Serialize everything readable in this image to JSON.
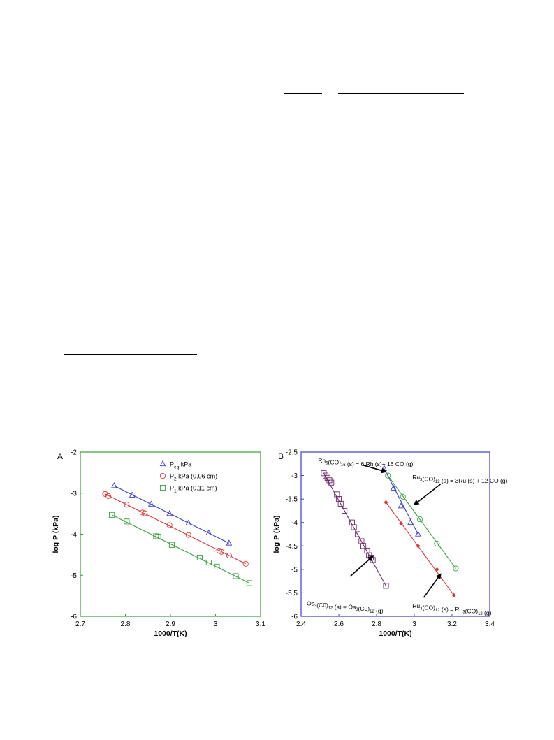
{
  "page": {
    "background": "#ffffff"
  },
  "chart_data": [
    {
      "type": "scatter",
      "panel_label": "A",
      "xlabel": "1000/T(K)",
      "ylabel": "log  P  (kPa)",
      "xlim": [
        2.7,
        3.1
      ],
      "ylim": [
        -6,
        -2
      ],
      "xticks": [
        "2.7",
        "2.8",
        "2.9",
        "3",
        "3.1"
      ],
      "yticks": [
        "-6",
        "-5",
        "-4",
        "-3",
        "-2"
      ],
      "axis_color": "#3aa03a",
      "legend_placement": "top-right",
      "series": [
        {
          "name": "P",
          "name_sub": "eq",
          "name_suffix": " kPa",
          "marker": "triangle",
          "color": "#3b3bd6",
          "x": [
            2.775,
            2.815,
            2.857,
            2.898,
            2.94,
            2.985,
            3.03
          ],
          "y": [
            -2.82,
            -3.05,
            -3.27,
            -3.5,
            -3.73,
            -3.97,
            -4.22
          ],
          "fit": [
            [
              2.775,
              -2.82
            ],
            [
              3.03,
              -4.22
            ]
          ]
        },
        {
          "name": "P",
          "name_sub": "2",
          "name_suffix": "  kPa (0.06 cm)",
          "marker": "circle",
          "color": "#e03535",
          "x": [
            2.755,
            2.762,
            2.803,
            2.838,
            2.843,
            2.898,
            2.94,
            3.008,
            3.013,
            3.03,
            3.067
          ],
          "y": [
            -3.02,
            -3.07,
            -3.28,
            -3.47,
            -3.49,
            -3.78,
            -4.02,
            -4.4,
            -4.43,
            -4.52,
            -4.72
          ],
          "fit": [
            [
              2.755,
              -3.02
            ],
            [
              3.067,
              -4.72
            ]
          ]
        },
        {
          "name": "P",
          "name_sub": "1",
          "name_suffix": "  kPa (0.11 cm)",
          "marker": "square",
          "color": "#3aa03a",
          "x": [
            2.77,
            2.803,
            2.868,
            2.873,
            2.903,
            2.965,
            2.985,
            3.003,
            3.045,
            3.075
          ],
          "y": [
            -3.53,
            -3.69,
            -4.05,
            -4.06,
            -4.26,
            -4.57,
            -4.69,
            -4.79,
            -5.02,
            -5.19
          ],
          "fit": [
            [
              2.77,
              -3.53
            ],
            [
              3.075,
              -5.19
            ]
          ]
        }
      ]
    },
    {
      "type": "scatter",
      "panel_label": "B",
      "xlabel": "1000/T(K)",
      "ylabel": "log  P  (kPa)",
      "xlim": [
        2.4,
        3.4
      ],
      "ylim": [
        -6,
        -2.5
      ],
      "xticks": [
        "2.4",
        "2.6",
        "2.8",
        "3",
        "3.2",
        "3.4"
      ],
      "yticks": [
        "-6",
        "-5.5",
        "-5",
        "-4.5",
        "-4",
        "-3.5",
        "-3",
        "-2.5"
      ],
      "axis_color": "#3b3bd6",
      "series": [
        {
          "name": "Os3(CO)12",
          "marker": "square",
          "color": "#6a2a6a",
          "x": [
            2.52,
            2.53,
            2.54,
            2.55,
            2.56,
            2.59,
            2.6,
            2.61,
            2.63,
            2.67,
            2.68,
            2.7,
            2.72,
            2.73,
            2.75,
            2.76,
            2.77,
            2.78,
            2.85
          ],
          "y": [
            -2.95,
            -3.0,
            -3.05,
            -3.1,
            -3.15,
            -3.4,
            -3.5,
            -3.6,
            -3.75,
            -4.0,
            -4.1,
            -4.25,
            -4.4,
            -4.5,
            -4.6,
            -4.7,
            -4.75,
            -4.8,
            -5.35
          ],
          "fit": [
            [
              2.52,
              -2.95
            ],
            [
              2.85,
              -5.35
            ]
          ]
        },
        {
          "name": "Rh6(CO)16",
          "marker": "triangle",
          "color": "#3b3bd6",
          "x": [
            2.84,
            2.89,
            2.93,
            2.98,
            3.02
          ],
          "y": [
            -2.85,
            -3.27,
            -3.65,
            -4.0,
            -4.25
          ],
          "fit": [
            [
              2.84,
              -2.85
            ],
            [
              3.02,
              -4.25
            ]
          ]
        },
        {
          "name": "Ru3(CO)12 (12 CO)",
          "marker": "circle",
          "color": "#3aa03a",
          "x": [
            2.86,
            2.94,
            3.03,
            3.12,
            3.22
          ],
          "y": [
            -3.0,
            -3.45,
            -3.93,
            -4.45,
            -4.98
          ],
          "fit": [
            [
              2.86,
              -3.0
            ],
            [
              3.22,
              -4.98
            ]
          ]
        },
        {
          "name": "Ru3(CO)12 (g)",
          "marker": "diamond",
          "color": "#e03535",
          "x": [
            2.85,
            2.93,
            3.02,
            3.12,
            3.21
          ],
          "y": [
            -3.57,
            -4.02,
            -4.5,
            -5.0,
            -5.55
          ],
          "fit": [
            [
              2.85,
              -3.57
            ],
            [
              3.21,
              -5.55
            ]
          ]
        }
      ],
      "annotations": [
        {
          "parts": [
            [
              "Rh",
              ""
            ],
            [
              "6",
              "sub"
            ],
            [
              "(CO)",
              ""
            ],
            [
              "16",
              "sub"
            ],
            [
              " (s) = 6 Rh (s)+ 16 CO (g)",
              ""
            ]
          ],
          "x": 2.49,
          "y": -2.72,
          "arrow_from": [
            2.73,
            -2.78
          ],
          "arrow_to": [
            2.85,
            -2.92
          ]
        },
        {
          "parts": [
            [
              "Ru",
              ""
            ],
            [
              "3",
              "sub"
            ],
            [
              "(CO)",
              ""
            ],
            [
              "12",
              "sub"
            ],
            [
              " (s)  = 3Ru (s) + 12 CO (g)",
              ""
            ]
          ],
          "x": 2.99,
          "y": -3.08,
          "arrow_from": [
            3.14,
            -3.18
          ],
          "arrow_to": [
            3.0,
            -3.62
          ]
        },
        {
          "parts": [
            [
              "Os",
              ""
            ],
            [
              "3",
              "sub"
            ],
            [
              "(C0)",
              ""
            ],
            [
              "12",
              "sub"
            ],
            [
              " (s) = Os",
              ""
            ],
            [
              "3",
              "sub"
            ],
            [
              "(C0)",
              ""
            ],
            [
              "12",
              "sub"
            ],
            [
              " (g)",
              ""
            ]
          ],
          "x": 2.43,
          "y": -5.77,
          "arrow_from": [
            2.66,
            -5.15
          ],
          "arrow_to": [
            2.78,
            -4.72
          ]
        },
        {
          "parts": [
            [
              "Ru",
              ""
            ],
            [
              "3",
              "sub"
            ],
            [
              "(CO)",
              ""
            ],
            [
              "12",
              "sub"
            ],
            [
              " (s)  = Ru",
              ""
            ],
            [
              "3",
              "sub"
            ],
            [
              "(CO)",
              ""
            ],
            [
              "12",
              "sub"
            ],
            [
              " (g)",
              ""
            ]
          ],
          "x": 2.99,
          "y": -5.82,
          "arrow_from": [
            3.05,
            -5.6
          ],
          "arrow_to": [
            3.14,
            -5.1
          ]
        }
      ]
    }
  ]
}
